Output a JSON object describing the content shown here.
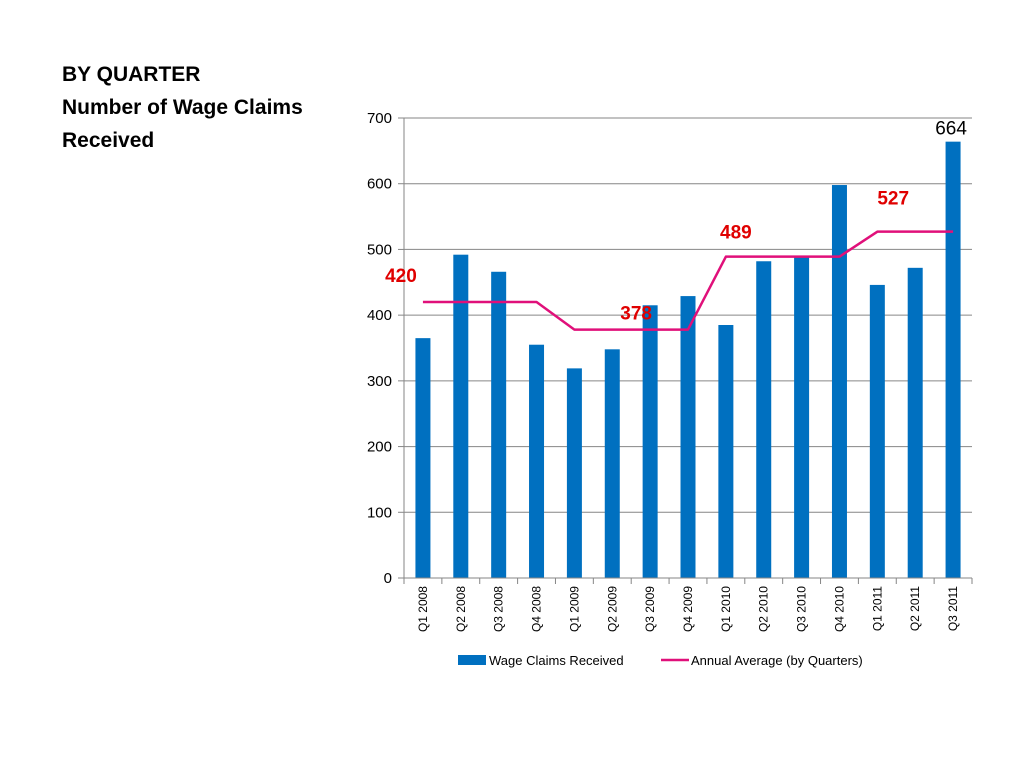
{
  "heading": {
    "line1": "BY QUARTER",
    "line2": "Number of Wage Claims",
    "line3": "Received"
  },
  "chart_data": {
    "type": "bar",
    "categories": [
      "Q1 2008",
      "Q2 2008",
      "Q3 2008",
      "Q4 2008",
      "Q1 2009",
      "Q2 2009",
      "Q3 2009",
      "Q4 2009",
      "Q1 2010",
      "Q2 2010",
      "Q3 2010",
      "Q4 2010",
      "Q1 2011",
      "Q2 2011",
      "Q3 2011"
    ],
    "series": [
      {
        "name": "Wage Claims Received",
        "kind": "bar",
        "color": "#0070C0",
        "values": [
          365,
          492,
          466,
          355,
          319,
          348,
          415,
          429,
          385,
          482,
          490,
          598,
          446,
          472,
          664
        ]
      },
      {
        "name": "Annual Average (by Quarters)",
        "kind": "line",
        "color": "#E0107A",
        "values": [
          420,
          420,
          420,
          420,
          378,
          378,
          378,
          378,
          489,
          489,
          489,
          489,
          527,
          527,
          527
        ]
      }
    ],
    "data_labels": [
      {
        "category": "Q3 2011",
        "text": "664",
        "color": "#000000"
      }
    ],
    "average_labels": [
      {
        "category": "Q1 2008",
        "text": "420",
        "color": "#E00000"
      },
      {
        "category": "Q3 2009",
        "text": "378",
        "color": "#E00000"
      },
      {
        "category": "Q1 2010",
        "text": "489",
        "color": "#E00000"
      },
      {
        "category": "Q2 2011",
        "text": "527",
        "color": "#E00000"
      }
    ],
    "y_ticks": [
      "0",
      "100",
      "200",
      "300",
      "400",
      "500",
      "600",
      "700"
    ],
    "ylim": [
      0,
      700
    ],
    "grid": true,
    "legend": "bottom"
  }
}
